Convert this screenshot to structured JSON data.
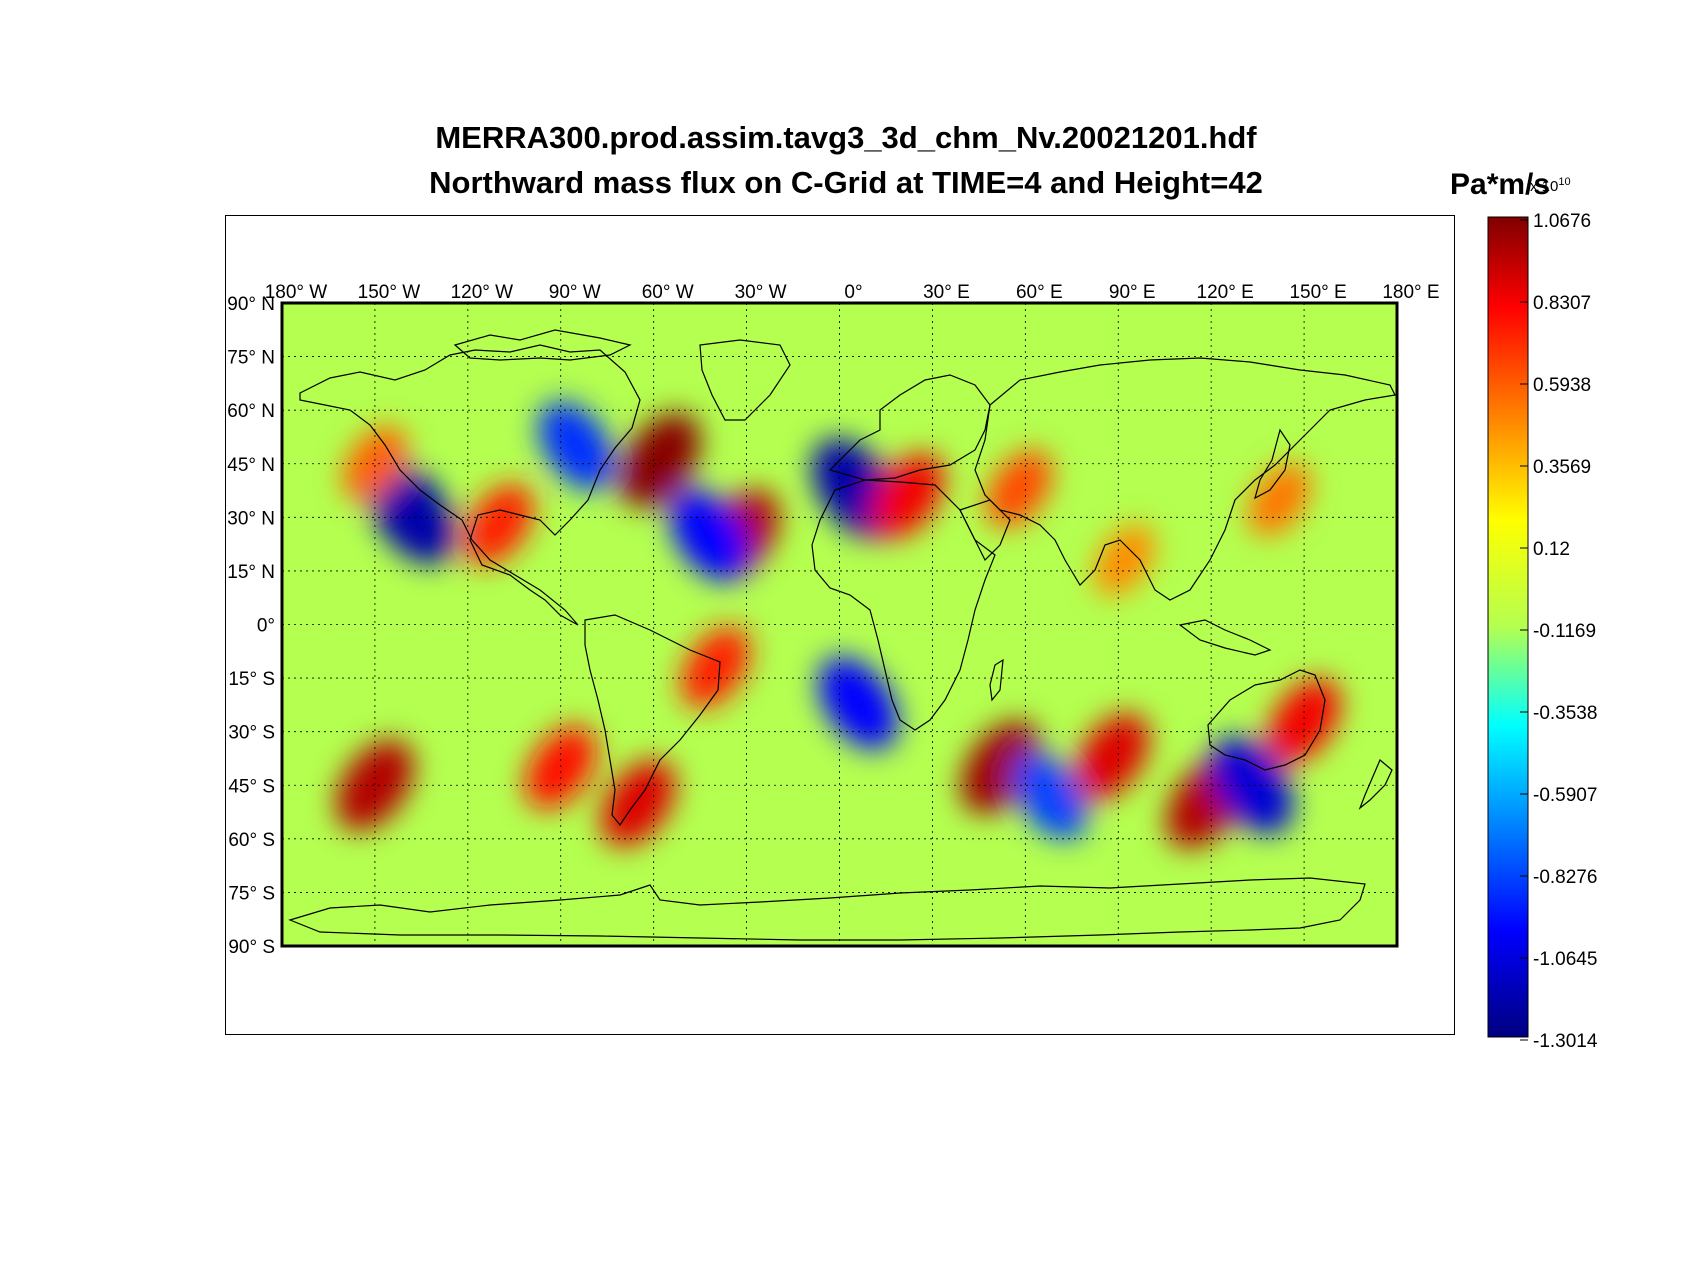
{
  "title_line1": "MERRA300.prod.assim.tavg3_3d_chm_Nv.20021201.hdf",
  "title_line2": "Northward mass flux on C-Grid at TIME=4 and Height=42",
  "colorbar": {
    "units": "Pa*m/s",
    "multiplier": "x 10",
    "exponent": "10",
    "tick_labels": [
      "1.0676",
      "0.8307",
      "0.5938",
      "0.3569",
      "0.12",
      "-0.1169",
      "-0.3538",
      "-0.5907",
      "-0.8276",
      "-1.0645",
      "-1.3014"
    ],
    "min": -1.3014,
    "max": 1.0676
  },
  "chart_data": {
    "type": "heatmap",
    "projection": "equirectangular",
    "variable": "Northward mass flux on C-Grid",
    "units": "Pa*m/s x 10^10",
    "colormap": "jet",
    "value_range": [
      -1.3014,
      1.0676
    ],
    "xlim": [
      -180,
      180
    ],
    "ylim": [
      -90,
      90
    ],
    "grid": true,
    "lon_ticks": [
      "180° W",
      "150° W",
      "120° W",
      "90° W",
      "60° W",
      "30° W",
      "0°",
      "30° E",
      "60° E",
      "90° E",
      "120° E",
      "150° E",
      "180° E"
    ],
    "lat_ticks": [
      "90° N",
      "75° N",
      "60° N",
      "45° N",
      "30° N",
      "15° N",
      "0°",
      "15° S",
      "30° S",
      "45° S",
      "60° S",
      "75° S",
      "90° S"
    ],
    "features": [
      {
        "lon": -138,
        "lat": 31,
        "value": -1.2
      },
      {
        "lon": -85,
        "lat": 50,
        "value": -0.9
      },
      {
        "lon": -58,
        "lat": 46,
        "value": 1.05
      },
      {
        "lon": -32,
        "lat": 25,
        "value": 0.95
      },
      {
        "lon": -42,
        "lat": 25,
        "value": -1.0
      },
      {
        "lon": 5,
        "lat": 38,
        "value": -1.2
      },
      {
        "lon": 22,
        "lat": 36,
        "value": 0.8
      },
      {
        "lon": 58,
        "lat": 38,
        "value": 0.6
      },
      {
        "lon": -110,
        "lat": 28,
        "value": 0.7
      },
      {
        "lon": -150,
        "lat": 45,
        "value": 0.55
      },
      {
        "lon": -150,
        "lat": -45,
        "value": 0.95
      },
      {
        "lon": -90,
        "lat": -40,
        "value": 0.75
      },
      {
        "lon": -65,
        "lat": -50,
        "value": 0.85
      },
      {
        "lon": -40,
        "lat": -12,
        "value": 0.7
      },
      {
        "lon": 6,
        "lat": -22,
        "value": -1.0
      },
      {
        "lon": 52,
        "lat": -40,
        "value": 1.0
      },
      {
        "lon": 68,
        "lat": -48,
        "value": -0.85
      },
      {
        "lon": 88,
        "lat": -37,
        "value": 0.85
      },
      {
        "lon": 118,
        "lat": -50,
        "value": 0.95
      },
      {
        "lon": 133,
        "lat": -45,
        "value": -1.1
      },
      {
        "lon": 150,
        "lat": -27,
        "value": 0.8
      },
      {
        "lon": 142,
        "lat": 35,
        "value": 0.5
      },
      {
        "lon": 92,
        "lat": 18,
        "value": 0.45
      }
    ]
  }
}
